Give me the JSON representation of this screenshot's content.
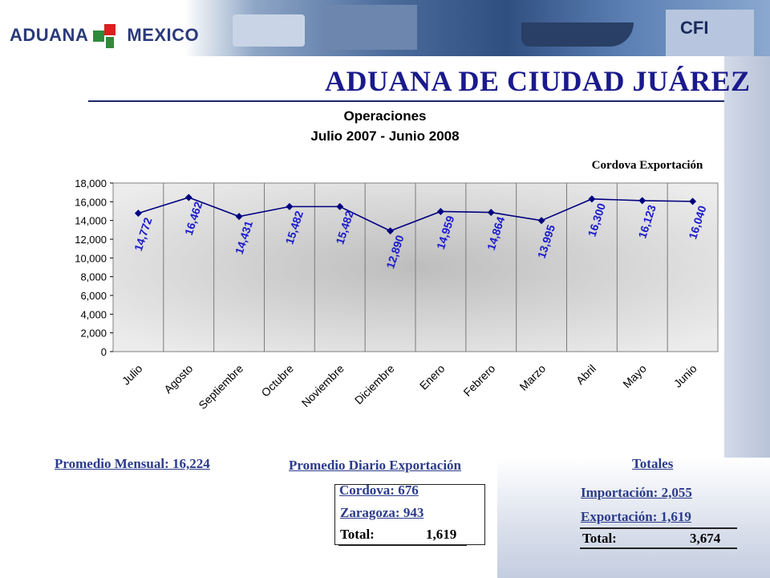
{
  "header": {
    "logo_left": "ADUANA",
    "logo_right": "MEXICO",
    "title": "ADUANA DE CIUDAD JUÁREZ"
  },
  "photo_labels": {
    "container_text": "CFI"
  },
  "chart_data": {
    "type": "line",
    "title": "Operaciones",
    "subtitle": "Julio 2007 - Junio 2008",
    "annotation": "Cordova Exportación",
    "categories": [
      "Julio",
      "Agosto",
      "Septiembre",
      "Octubre",
      "Noviembre",
      "Diciembre",
      "Enero",
      "Febrero",
      "Marzo",
      "Abril",
      "Mayo",
      "Junio"
    ],
    "values": [
      14772,
      16462,
      14431,
      15482,
      15482,
      12890,
      14959,
      14864,
      13995,
      16300,
      16123,
      16040
    ],
    "data_labels": [
      "14,772",
      "16,462",
      "14,431",
      "15,482",
      "15,482",
      "12,890",
      "14,959",
      "14,864",
      "13,995",
      "16,300",
      "16,123",
      "16,040"
    ],
    "y_ticks": [
      "0",
      "2,000",
      "4,000",
      "6,000",
      "8,000",
      "10,000",
      "12,000",
      "14,000",
      "16,000",
      "18,000"
    ],
    "ylim": [
      0,
      18000
    ],
    "grid": "vertical",
    "colors": {
      "line": "#000080",
      "label": "#1a1acc",
      "plot_bg": "#d8d8d8"
    }
  },
  "summary": {
    "monthly_avg": "Promedio Mensual: 16,224",
    "daily_title": "Promedio Diario Exportación",
    "daily": {
      "cordova": "Cordova: 676",
      "zaragoza": "Zaragoza: 943",
      "total_label": "Total:",
      "total_value": "1,619"
    },
    "totals_title": "Totales",
    "totals": {
      "importacion": "Importación: 2,055",
      "exportacion": "Exportación: 1,619",
      "total_label": "Total:",
      "total_value": "3,674"
    }
  }
}
